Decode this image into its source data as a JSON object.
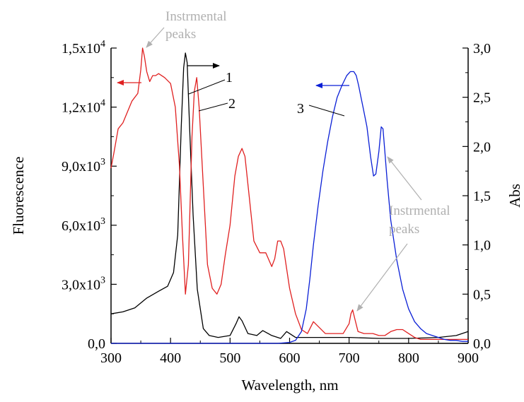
{
  "chart_data": {
    "type": "line",
    "title": "",
    "xlabel": "Wavelength, nm",
    "ylabel_left": "Fluorescence",
    "ylabel_right": "Abs",
    "xlim": [
      300,
      900
    ],
    "ylim_left": [
      0,
      15000
    ],
    "ylim_right": [
      0,
      3.0
    ],
    "x_ticks": [
      "300",
      "400",
      "500",
      "600",
      "700",
      "800",
      "900"
    ],
    "x_tick_values": [
      300,
      400,
      500,
      600,
      700,
      800,
      900
    ],
    "y_left_ticks": [
      {
        "value": 0,
        "mantissa": "0,0",
        "exponent": ""
      },
      {
        "value": 3000,
        "mantissa": "3,0x10",
        "exponent": "3"
      },
      {
        "value": 6000,
        "mantissa": "6,0x10",
        "exponent": "3"
      },
      {
        "value": 9000,
        "mantissa": "9,0x10",
        "exponent": "3"
      },
      {
        "value": 12000,
        "mantissa": "1,2x10",
        "exponent": "4"
      },
      {
        "value": 15000,
        "mantissa": "1,5x10",
        "exponent": "4"
      }
    ],
    "y_right_ticks": [
      {
        "value": 0.0,
        "label": "0,0"
      },
      {
        "value": 0.5,
        "label": "0,5"
      },
      {
        "value": 1.0,
        "label": "1,0"
      },
      {
        "value": 1.5,
        "label": "1,5"
      },
      {
        "value": 2.0,
        "label": "2,0"
      },
      {
        "value": 2.5,
        "label": "2,5"
      },
      {
        "value": 3.0,
        "label": "3,0"
      }
    ],
    "grid": false,
    "series": [
      {
        "id": "1",
        "label": "1",
        "color": "#000000",
        "axis": "right",
        "x": [
          300,
          320,
          340,
          360,
          380,
          395,
          405,
          412,
          418,
          422,
          425,
          428,
          432,
          438,
          445,
          455,
          465,
          480,
          500,
          510,
          515,
          520,
          530,
          545,
          555,
          570,
          585,
          595,
          610,
          650,
          700,
          750,
          800,
          850,
          880,
          900
        ],
        "y": [
          0.3,
          0.32,
          0.36,
          0.46,
          0.53,
          0.58,
          0.72,
          1.1,
          2.2,
          2.8,
          2.95,
          2.85,
          2.2,
          1.3,
          0.55,
          0.15,
          0.08,
          0.06,
          0.08,
          0.2,
          0.27,
          0.23,
          0.1,
          0.08,
          0.13,
          0.08,
          0.05,
          0.12,
          0.06,
          0.06,
          0.06,
          0.05,
          0.05,
          0.06,
          0.08,
          0.12
        ]
      },
      {
        "id": "2",
        "label": "2",
        "color": "#e02020",
        "axis": "left",
        "x": [
          300,
          305,
          312,
          320,
          335,
          345,
          350,
          353,
          356,
          360,
          365,
          370,
          375,
          380,
          390,
          400,
          408,
          415,
          420,
          425,
          430,
          436,
          440,
          444,
          448,
          455,
          462,
          470,
          478,
          485,
          492,
          500,
          508,
          514,
          520,
          525,
          532,
          540,
          550,
          560,
          570,
          575,
          580,
          585,
          590,
          595,
          600,
          610,
          620,
          630,
          640,
          650,
          660,
          670,
          680,
          690,
          700,
          703,
          706,
          710,
          715,
          725,
          740,
          750,
          760,
          770,
          780,
          790,
          800,
          810,
          815,
          820,
          840,
          860,
          880,
          900
        ],
        "y": [
          8900,
          9700,
          10900,
          11200,
          12300,
          12700,
          13900,
          15000,
          14600,
          13800,
          13300,
          13600,
          13600,
          13700,
          13500,
          13200,
          12000,
          9000,
          5500,
          2500,
          4000,
          10500,
          12800,
          13500,
          12000,
          8000,
          4000,
          2800,
          2500,
          3000,
          4500,
          6000,
          8500,
          9500,
          9900,
          9500,
          7500,
          5200,
          4600,
          4600,
          3900,
          4300,
          5200,
          5200,
          4800,
          3800,
          2800,
          1500,
          700,
          500,
          1100,
          800,
          500,
          500,
          500,
          500,
          1000,
          1500,
          1700,
          1200,
          600,
          500,
          500,
          400,
          400,
          600,
          700,
          700,
          500,
          300,
          250,
          200,
          200,
          200,
          200,
          200
        ]
      },
      {
        "id": "3",
        "label": "3",
        "color": "#0a1fd6",
        "axis": "right",
        "x": [
          300,
          580,
          600,
          610,
          620,
          628,
          634,
          640,
          648,
          656,
          664,
          672,
          680,
          688,
          696,
          702,
          708,
          712,
          716,
          720,
          724,
          730,
          736,
          741,
          745,
          750,
          754,
          757,
          760,
          764,
          770,
          780,
          790,
          800,
          810,
          820,
          830,
          840,
          850,
          860,
          870,
          880,
          890,
          900
        ],
        "y": [
          0,
          0,
          0.01,
          0.03,
          0.12,
          0.35,
          0.65,
          1.0,
          1.4,
          1.75,
          2.05,
          2.3,
          2.5,
          2.62,
          2.72,
          2.76,
          2.76,
          2.72,
          2.62,
          2.5,
          2.38,
          2.2,
          1.9,
          1.7,
          1.72,
          1.95,
          2.2,
          2.18,
          1.95,
          1.65,
          1.25,
          0.85,
          0.55,
          0.35,
          0.22,
          0.15,
          0.1,
          0.08,
          0.06,
          0.04,
          0.03,
          0.03,
          0.02,
          0.02
        ]
      }
    ],
    "annotations": [
      {
        "text": "Instrmental",
        "text2": "peaks",
        "color": "#b0b0b0"
      },
      {
        "text": "Instrmental",
        "text2": "peaks",
        "color": "#b0b0b0"
      }
    ]
  }
}
